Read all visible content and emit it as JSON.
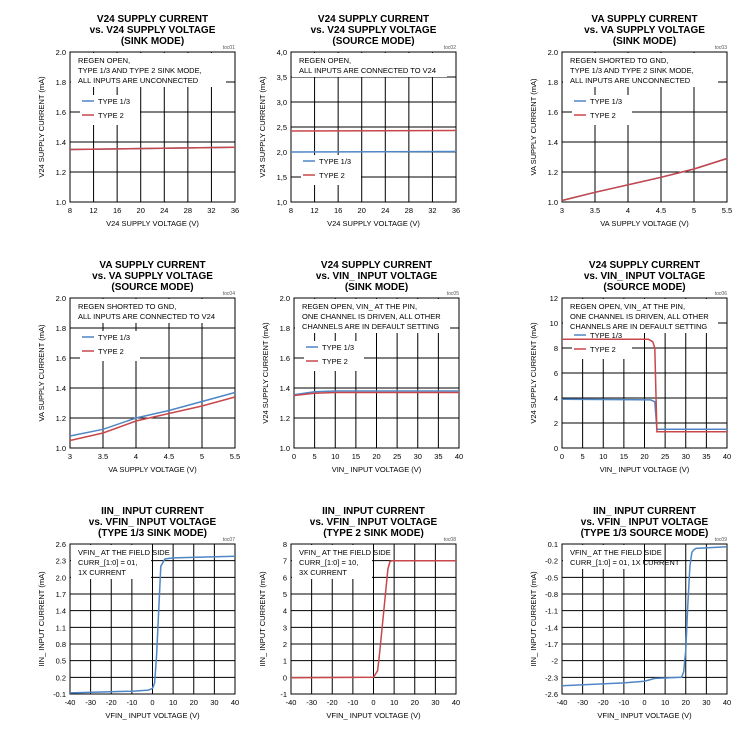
{
  "colors": {
    "type13": "#4f86c6",
    "type2": "#c9474a",
    "grid": "#000000"
  },
  "chart_data": [
    {
      "id": "toc01",
      "type": "line",
      "tag": "toc01",
      "title": [
        "V24 SUPPLY CURRENT",
        "vs. V24 SUPPLY VOLTAGE",
        "(SINK MODE)"
      ],
      "xlabel": "V24 SUPPLY VOLTAGE (V)",
      "ylabel": "V24 SUPPLY CURRENT (mA)",
      "xlim": [
        8,
        36
      ],
      "ylim": [
        1.0,
        2.0
      ],
      "xticks": [
        8,
        12,
        16,
        20,
        24,
        28,
        32,
        36
      ],
      "yticks": [
        1.0,
        1.2,
        1.4,
        1.6,
        1.8,
        2.0
      ],
      "ytick_labels": [
        "1.0",
        "1.2",
        "1.4",
        "1.6",
        "1.8",
        "2.0"
      ],
      "xtick_labels": [
        "8",
        "12",
        "16",
        "20",
        "24",
        "28",
        "32",
        "36"
      ],
      "annotation": [
        "REGEN OPEN,",
        "TYPE 1/3 AND TYPE 2 SINK MODE,",
        "ALL INPUTS ARE UNCONNECTED"
      ],
      "legend": [
        "TYPE 1/3",
        "TYPE 2"
      ],
      "series": [
        {
          "name": "TYPE 1/3",
          "x": [
            8,
            36
          ],
          "y": [
            1.35,
            1.365
          ]
        },
        {
          "name": "TYPE 2",
          "x": [
            8,
            36
          ],
          "y": [
            1.35,
            1.365
          ]
        }
      ]
    },
    {
      "id": "toc02",
      "type": "line",
      "tag": "toc02",
      "title": [
        "V24 SUPPLY CURRENT",
        "vs. V24 SUPPLY VOLTAGE",
        "(SOURCE MODE)"
      ],
      "xlabel": "V24 SUPPLY VOLTAGE (V)",
      "ylabel": "V24 SUPPLY CURRENT (mA)",
      "xlim": [
        8,
        36
      ],
      "ylim": [
        1.0,
        4.0
      ],
      "xticks": [
        8,
        12,
        16,
        20,
        24,
        28,
        32,
        36
      ],
      "yticks": [
        1.0,
        1.5,
        2.0,
        2.5,
        3.0,
        3.5,
        4.0
      ],
      "ytick_labels": [
        "1,0",
        "1,5",
        "2,0",
        "2,5",
        "3,0",
        "3,5",
        "4,0"
      ],
      "xtick_labels": [
        "8",
        "12",
        "16",
        "20",
        "24",
        "28",
        "32",
        "36"
      ],
      "annotation": [
        "REGEN OPEN,",
        "ALL INPUTS ARE CONNECTED TO V24"
      ],
      "legend": [
        "TYPE 1/3",
        "TYPE 2"
      ],
      "series": [
        {
          "name": "TYPE 1/3",
          "x": [
            8,
            36
          ],
          "y": [
            2.0,
            2.01
          ]
        },
        {
          "name": "TYPE 2",
          "x": [
            8,
            36
          ],
          "y": [
            2.42,
            2.43
          ]
        }
      ]
    },
    {
      "id": "toc03",
      "type": "line",
      "tag": "toc03",
      "title": [
        "VA SUPPLY CURRENT",
        "vs. VA SUPPLY VOLTAGE",
        "(SINK MODE)"
      ],
      "xlabel": "VA SUPPLY VOLTAGE (V)",
      "ylabel": "VA SUPPLY CURRENT (mA)",
      "xlim": [
        3,
        5.5
      ],
      "ylim": [
        1.0,
        2.0
      ],
      "xticks": [
        3,
        3.5,
        4,
        4.5,
        5,
        5.5
      ],
      "yticks": [
        1.0,
        1.2,
        1.4,
        1.6,
        1.8,
        2.0
      ],
      "ytick_labels": [
        "1.0",
        "1.2",
        "1.4",
        "1.6",
        "1.8",
        "2.0"
      ],
      "xtick_labels": [
        "3",
        "3.5",
        "4",
        "4.5",
        "5",
        "5.5"
      ],
      "annotation": [
        "REGEN SHORTED TO GND,",
        "TYPE 1/3 AND TYPE 2 SINK MODE,",
        "ALL INPUTS ARE UNCONNECTED"
      ],
      "legend": [
        "TYPE 1/3",
        "TYPE 2"
      ],
      "series": [
        {
          "name": "TYPE 1/3",
          "x": [
            3,
            3.5,
            4,
            4.5,
            5,
            5.5
          ],
          "y": [
            1.01,
            1.065,
            1.115,
            1.165,
            1.22,
            1.29
          ]
        },
        {
          "name": "TYPE 2",
          "x": [
            3,
            3.5,
            4,
            4.5,
            5,
            5.5
          ],
          "y": [
            1.01,
            1.065,
            1.115,
            1.165,
            1.22,
            1.29
          ]
        }
      ]
    },
    {
      "id": "toc04",
      "type": "line",
      "tag": "toc04",
      "title": [
        "VA SUPPLY CURRENT",
        "vs. VA SUPPLY VOLTAGE",
        "(SOURCE MODE)"
      ],
      "xlabel": "VA SUPPLY VOLTAGE (V)",
      "ylabel": "VA SUPPLY CURRENT (mA)",
      "xlim": [
        3,
        5.5
      ],
      "ylim": [
        1.0,
        2.0
      ],
      "xticks": [
        3,
        3.5,
        4,
        4.5,
        5,
        5.5
      ],
      "yticks": [
        1.0,
        1.2,
        1.4,
        1.6,
        1.8,
        2.0
      ],
      "ytick_labels": [
        "1.0",
        "1.2",
        "1.4",
        "1.6",
        "1.8",
        "2.0"
      ],
      "xtick_labels": [
        "3",
        "3.5",
        "4",
        "4.5",
        "5",
        "5.5"
      ],
      "annotation": [
        "REGEN SHORTED TO GND,",
        "ALL INPUTS ARE CONNECTED TO V24"
      ],
      "legend": [
        "TYPE 1/3",
        "TYPE 2"
      ],
      "series": [
        {
          "name": "TYPE 1/3",
          "x": [
            3,
            3.5,
            4,
            4.5,
            5,
            5.5
          ],
          "y": [
            1.08,
            1.125,
            1.2,
            1.25,
            1.31,
            1.37
          ]
        },
        {
          "name": "TYPE 2",
          "x": [
            3,
            3.5,
            4,
            4.5,
            5,
            5.5
          ],
          "y": [
            1.05,
            1.1,
            1.18,
            1.23,
            1.28,
            1.34
          ]
        }
      ]
    },
    {
      "id": "toc05",
      "type": "line",
      "tag": "toc05",
      "title": [
        "V24 SUPPLY CURRENT",
        "vs. VIN_ INPUT VOLTAGE",
        "(SINK MODE)"
      ],
      "xlabel": "VIN_ INPUT VOLTAGE (V)",
      "ylabel": "V24 SUPPLY CURRENT (mA)",
      "xlim": [
        0,
        40
      ],
      "ylim": [
        1.0,
        2.0
      ],
      "xticks": [
        0,
        5,
        10,
        15,
        20,
        25,
        30,
        35,
        40
      ],
      "yticks": [
        1.0,
        1.2,
        1.4,
        1.6,
        1.8,
        2.0
      ],
      "ytick_labels": [
        "1.0",
        "1.2",
        "1.4",
        "1.6",
        "1.8",
        "2.0"
      ],
      "xtick_labels": [
        "0",
        "5",
        "10",
        "15",
        "20",
        "25",
        "30",
        "35",
        "40"
      ],
      "annotation": [
        "REGEN OPEN, VIN_ AT THE PIN,",
        "ONE CHANNEL IS DRIVEN, ALL OTHER",
        "CHANNELS ARE IN DEFAULT SETTING"
      ],
      "legend": [
        "TYPE 1/3",
        "TYPE 2"
      ],
      "series": [
        {
          "name": "TYPE 1/3",
          "x": [
            0,
            5,
            10,
            20,
            30,
            40
          ],
          "y": [
            1.355,
            1.375,
            1.38,
            1.38,
            1.38,
            1.38
          ]
        },
        {
          "name": "TYPE 2",
          "x": [
            0,
            5,
            10,
            20,
            30,
            40
          ],
          "y": [
            1.35,
            1.365,
            1.37,
            1.37,
            1.37,
            1.37
          ]
        }
      ]
    },
    {
      "id": "toc06",
      "type": "line",
      "tag": "toc06",
      "title": [
        "V24 SUPPLY CURRENT",
        "vs. VIN_ INPUT VOLTAGE",
        "(SOURCE MODE)"
      ],
      "xlabel": "VIN_ INPUT VOLTAGE (V)",
      "ylabel": "V24 SUPPLY CURRENT (mA)",
      "xlim": [
        0,
        40
      ],
      "ylim": [
        0,
        12
      ],
      "xticks": [
        0,
        5,
        10,
        15,
        20,
        25,
        30,
        35,
        40
      ],
      "yticks": [
        0,
        2,
        4,
        6,
        8,
        10,
        12
      ],
      "ytick_labels": [
        "0",
        "2",
        "4",
        "6",
        "8",
        "10",
        "12"
      ],
      "xtick_labels": [
        "0",
        "5",
        "10",
        "15",
        "20",
        "25",
        "30",
        "35",
        "40"
      ],
      "annotation": [
        "REGEN OPEN, VIN_ AT THE PIN,",
        "ONE CHANNEL IS DRIVEN, ALL OTHER",
        "CHANNELS ARE IN DEFAULT SETTING"
      ],
      "legend": [
        "TYPE 1/3",
        "TYPE 2"
      ],
      "series": [
        {
          "name": "TYPE 1/3",
          "x": [
            0,
            21.5,
            22.5,
            23,
            40
          ],
          "y": [
            3.9,
            3.85,
            3.7,
            1.5,
            1.5
          ]
        },
        {
          "name": "TYPE 2",
          "x": [
            0,
            21,
            22,
            22.5,
            23,
            40
          ],
          "y": [
            8.7,
            8.7,
            8.5,
            8.0,
            1.3,
            1.3
          ]
        }
      ]
    },
    {
      "id": "toc07",
      "type": "line",
      "tag": "toc07",
      "title": [
        "IIN_ INPUT CURRENT",
        "vs. VFIN_ INPUT VOLTAGE",
        "(TYPE 1/3 SINK MODE)"
      ],
      "xlabel": "VFIN_ INPUT VOLTAGE (V)",
      "ylabel": "IIN_ INPUT CURRENT (mA)",
      "xlim": [
        -40,
        40
      ],
      "ylim": [
        -0.1,
        2.6
      ],
      "xticks": [
        -40,
        -30,
        -20,
        -10,
        0,
        10,
        20,
        30,
        40
      ],
      "yticks": [
        -0.1,
        0.2,
        0.5,
        0.8,
        1.1,
        1.4,
        1.7,
        2.0,
        2.3,
        2.6
      ],
      "ytick_labels": [
        "-0.1",
        "0.2",
        "0.5",
        "0.8",
        "1.1",
        "1.4",
        "1.7",
        "2.0",
        "2.3",
        "2.6"
      ],
      "xtick_labels": [
        "-40",
        "-30",
        "-20",
        "-10",
        "0",
        "10",
        "20",
        "30",
        "40"
      ],
      "annotation": [
        "VFIN_ AT THE FIELD SIDE",
        "CURR_[1:0] = 01,",
        "1X CURRENT"
      ],
      "legend": [],
      "series": [
        {
          "name": "TYPE 1/3",
          "x": [
            -40,
            -10,
            -2,
            0,
            1,
            2,
            4,
            6,
            10,
            40
          ],
          "y": [
            -0.08,
            -0.05,
            -0.03,
            0.0,
            0.1,
            0.6,
            2.2,
            2.33,
            2.35,
            2.38
          ]
        }
      ]
    },
    {
      "id": "toc08",
      "type": "line",
      "tag": "toc08",
      "title": [
        "IIN_ INPUT CURRENT",
        "vs. VFIN_ INPUT VOLTAGE",
        "(TYPE 2 SINK MODE)"
      ],
      "xlabel": "VFIN_ INPUT VOLTAGE (V)",
      "ylabel": "IIN_ INPUT CURRENT (mA)",
      "xlim": [
        -40,
        40
      ],
      "ylim": [
        -1,
        8
      ],
      "xticks": [
        -40,
        -30,
        -20,
        -10,
        0,
        10,
        20,
        30,
        40
      ],
      "yticks": [
        -1,
        0,
        1,
        2,
        3,
        4,
        5,
        6,
        7,
        8
      ],
      "ytick_labels": [
        "-1",
        "0",
        "1",
        "2",
        "3",
        "4",
        "5",
        "6",
        "7",
        "8"
      ],
      "xtick_labels": [
        "-40",
        "-30",
        "-20",
        "-10",
        "0",
        "10",
        "20",
        "30",
        "40"
      ],
      "annotation": [
        "VFIN_ AT THE FIELD SIDE",
        "CURR_[1:0] = 10,",
        "3X CURRENT"
      ],
      "legend": [],
      "series": [
        {
          "name": "TYPE 2",
          "x": [
            -40,
            0,
            2,
            3,
            5,
            7,
            8,
            9,
            40
          ],
          "y": [
            -0.02,
            0.0,
            0.4,
            1.5,
            4.0,
            6.5,
            6.95,
            7.0,
            7.0
          ]
        }
      ]
    },
    {
      "id": "toc09",
      "type": "line",
      "tag": "toc09",
      "title": [
        "IIN_ INPUT CURRENT",
        "vs. VFIN_ INPUT VOLTAGE",
        "(TYPE 1/3 SOURCE MODE)"
      ],
      "xlabel": "VFIN_ INPUT VOLTAGE (V)",
      "ylabel": "IIN_ INPUT CURRENT (mA)",
      "xlim": [
        -40,
        40
      ],
      "ylim": [
        -2.6,
        0.1
      ],
      "xticks": [
        -40,
        -30,
        -20,
        -10,
        0,
        10,
        20,
        30,
        40
      ],
      "yticks": [
        -2.6,
        -2.3,
        -2.0,
        -1.7,
        -1.4,
        -1.1,
        -0.8,
        -0.5,
        -0.2,
        0.1
      ],
      "ytick_labels": [
        "-2.6",
        "-2.3",
        "-2",
        "-1.7",
        "-1.4",
        "-1.1",
        "-0.8",
        "-0.5",
        "-0.2",
        "0.1"
      ],
      "xtick_labels": [
        "-40",
        "-30",
        "-20",
        "-10",
        "0",
        "10",
        "20",
        "30",
        "40"
      ],
      "annotation": [
        "VFIN_ AT THE FIELD SIDE",
        "CURR_[1:0] = 01, 1X CURRENT"
      ],
      "legend": [],
      "series": [
        {
          "name": "TYPE 1/3",
          "x": [
            -40,
            -10,
            0,
            5,
            18,
            19,
            20,
            21,
            22,
            23,
            24,
            25,
            40
          ],
          "y": [
            -2.45,
            -2.4,
            -2.37,
            -2.32,
            -2.3,
            -2.2,
            -1.8,
            -1.0,
            -0.3,
            -0.05,
            0.0,
            0.02,
            0.05
          ]
        }
      ]
    }
  ]
}
